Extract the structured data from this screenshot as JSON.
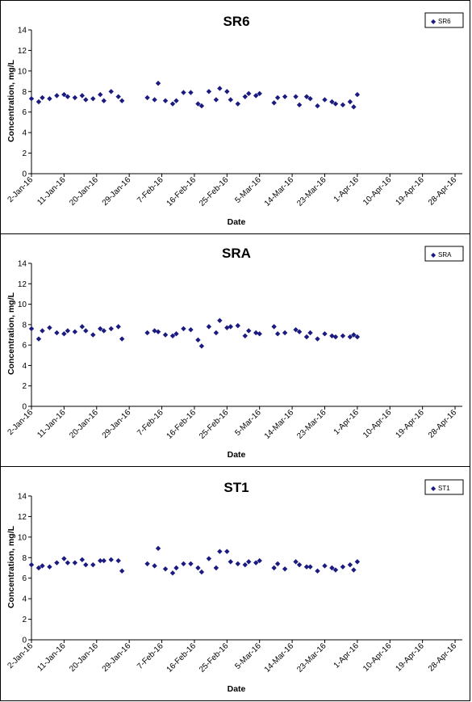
{
  "chart_data": [
    {
      "type": "scatter",
      "title": "SR6",
      "xlabel": "Date",
      "ylabel": "Concentration, mg/L",
      "ylim": [
        0,
        14
      ],
      "yticks": [
        "0",
        "2",
        "4",
        "6",
        "8",
        "10",
        "12",
        "14"
      ],
      "xlim": [
        "2016-01-02",
        "2016-04-30"
      ],
      "xticks": [
        "2-Jan-16",
        "11-Jan-16",
        "20-Jan-16",
        "29-Jan-16",
        "7-Feb-16",
        "16-Feb-16",
        "25-Feb-16",
        "5-Mar-16",
        "14-Mar-16",
        "23-Mar-16",
        "1-Apr-16",
        "10-Apr-16",
        "19-Apr-16",
        "28-Apr-16"
      ],
      "legend_position": "top-right",
      "grid": false,
      "marker_color": "#1a1a80",
      "series": [
        {
          "name": "SR6",
          "points": [
            [
              "2016-01-02",
              7.3
            ],
            [
              "2016-01-04",
              7.0
            ],
            [
              "2016-01-05",
              7.4
            ],
            [
              "2016-01-07",
              7.3
            ],
            [
              "2016-01-09",
              7.6
            ],
            [
              "2016-01-11",
              7.7
            ],
            [
              "2016-01-12",
              7.5
            ],
            [
              "2016-01-14",
              7.4
            ],
            [
              "2016-01-16",
              7.6
            ],
            [
              "2016-01-17",
              7.2
            ],
            [
              "2016-01-19",
              7.3
            ],
            [
              "2016-01-21",
              7.7
            ],
            [
              "2016-01-22",
              7.1
            ],
            [
              "2016-01-24",
              8.0
            ],
            [
              "2016-01-26",
              7.5
            ],
            [
              "2016-01-27",
              7.1
            ],
            [
              "2016-02-03",
              7.4
            ],
            [
              "2016-02-05",
              7.2
            ],
            [
              "2016-02-06",
              8.8
            ],
            [
              "2016-02-08",
              7.1
            ],
            [
              "2016-02-10",
              6.8
            ],
            [
              "2016-02-11",
              7.1
            ],
            [
              "2016-02-13",
              7.9
            ],
            [
              "2016-02-15",
              7.9
            ],
            [
              "2016-02-17",
              6.8
            ],
            [
              "2016-02-18",
              6.6
            ],
            [
              "2016-02-20",
              8.0
            ],
            [
              "2016-02-22",
              7.2
            ],
            [
              "2016-02-23",
              8.3
            ],
            [
              "2016-02-25",
              8.0
            ],
            [
              "2016-02-26",
              7.2
            ],
            [
              "2016-02-28",
              6.8
            ],
            [
              "2016-03-01",
              7.5
            ],
            [
              "2016-03-02",
              7.8
            ],
            [
              "2016-03-04",
              7.6
            ],
            [
              "2016-03-05",
              7.8
            ],
            [
              "2016-03-09",
              6.9
            ],
            [
              "2016-03-10",
              7.4
            ],
            [
              "2016-03-12",
              7.5
            ],
            [
              "2016-03-15",
              7.5
            ],
            [
              "2016-03-16",
              6.7
            ],
            [
              "2016-03-18",
              7.5
            ],
            [
              "2016-03-19",
              7.3
            ],
            [
              "2016-03-21",
              6.6
            ],
            [
              "2016-03-23",
              7.2
            ],
            [
              "2016-03-25",
              7.0
            ],
            [
              "2016-03-26",
              6.8
            ],
            [
              "2016-03-28",
              6.7
            ],
            [
              "2016-03-30",
              7.0
            ],
            [
              "2016-03-31",
              6.5
            ],
            [
              "2016-04-01",
              7.7
            ]
          ]
        }
      ]
    },
    {
      "type": "scatter",
      "title": "SRA",
      "xlabel": "Date",
      "ylabel": "Concentration, mg/L",
      "ylim": [
        0,
        14
      ],
      "yticks": [
        "0",
        "2",
        "4",
        "6",
        "8",
        "10",
        "12",
        "14"
      ],
      "xlim": [
        "2016-01-02",
        "2016-04-30"
      ],
      "xticks": [
        "2-Jan-16",
        "11-Jan-16",
        "20-Jan-16",
        "29-Jan-16",
        "7-Feb-16",
        "16-Feb-16",
        "25-Feb-16",
        "5-Mar-16",
        "14-Mar-16",
        "23-Mar-16",
        "1-Apr-16",
        "10-Apr-16",
        "19-Apr-16",
        "28-Apr-16"
      ],
      "legend_position": "top-right",
      "grid": false,
      "marker_color": "#1a1a80",
      "series": [
        {
          "name": "SRA",
          "points": [
            [
              "2016-01-02",
              7.6
            ],
            [
              "2016-01-04",
              6.6
            ],
            [
              "2016-01-05",
              7.4
            ],
            [
              "2016-01-07",
              7.7
            ],
            [
              "2016-01-09",
              7.2
            ],
            [
              "2016-01-11",
              7.1
            ],
            [
              "2016-01-12",
              7.4
            ],
            [
              "2016-01-14",
              7.3
            ],
            [
              "2016-01-16",
              7.8
            ],
            [
              "2016-01-17",
              7.4
            ],
            [
              "2016-01-19",
              7.0
            ],
            [
              "2016-01-21",
              7.6
            ],
            [
              "2016-01-22",
              7.4
            ],
            [
              "2016-01-24",
              7.6
            ],
            [
              "2016-01-26",
              7.8
            ],
            [
              "2016-01-27",
              6.6
            ],
            [
              "2016-02-03",
              7.2
            ],
            [
              "2016-02-05",
              7.4
            ],
            [
              "2016-02-06",
              7.3
            ],
            [
              "2016-02-08",
              7.0
            ],
            [
              "2016-02-10",
              6.9
            ],
            [
              "2016-02-11",
              7.1
            ],
            [
              "2016-02-13",
              7.6
            ],
            [
              "2016-02-15",
              7.5
            ],
            [
              "2016-02-17",
              6.5
            ],
            [
              "2016-02-18",
              5.9
            ],
            [
              "2016-02-20",
              7.8
            ],
            [
              "2016-02-22",
              7.2
            ],
            [
              "2016-02-23",
              8.4
            ],
            [
              "2016-02-25",
              7.7
            ],
            [
              "2016-02-26",
              7.8
            ],
            [
              "2016-02-28",
              7.9
            ],
            [
              "2016-03-01",
              6.9
            ],
            [
              "2016-03-02",
              7.4
            ],
            [
              "2016-03-04",
              7.2
            ],
            [
              "2016-03-05",
              7.1
            ],
            [
              "2016-03-09",
              7.8
            ],
            [
              "2016-03-10",
              7.1
            ],
            [
              "2016-03-12",
              7.2
            ],
            [
              "2016-03-15",
              7.5
            ],
            [
              "2016-03-16",
              7.3
            ],
            [
              "2016-03-18",
              6.8
            ],
            [
              "2016-03-19",
              7.2
            ],
            [
              "2016-03-21",
              6.6
            ],
            [
              "2016-03-23",
              7.1
            ],
            [
              "2016-03-25",
              6.9
            ],
            [
              "2016-03-26",
              6.8
            ],
            [
              "2016-03-28",
              6.9
            ],
            [
              "2016-03-30",
              6.8
            ],
            [
              "2016-03-31",
              7.0
            ],
            [
              "2016-04-01",
              6.8
            ]
          ]
        }
      ]
    },
    {
      "type": "scatter",
      "title": "ST1",
      "xlabel": "Date",
      "ylabel": "Concentration, mg/L",
      "ylim": [
        0,
        14
      ],
      "yticks": [
        "0",
        "2",
        "4",
        "6",
        "8",
        "10",
        "12",
        "14"
      ],
      "xlim": [
        "2016-01-02",
        "2016-04-30"
      ],
      "xticks": [
        "2-Jan-16",
        "11-Jan-16",
        "20-Jan-16",
        "29-Jan-16",
        "7-Feb-16",
        "16-Feb-16",
        "25-Feb-16",
        "5-Mar-16",
        "14-Mar-16",
        "23-Mar-16",
        "1-Apr-16",
        "10-Apr-16",
        "19-Apr-16",
        "28-Apr-16"
      ],
      "legend_position": "top-right",
      "grid": false,
      "marker_color": "#1a1a80",
      "series": [
        {
          "name": "ST1",
          "points": [
            [
              "2016-01-02",
              7.3
            ],
            [
              "2016-01-04",
              7.0
            ],
            [
              "2016-01-05",
              7.2
            ],
            [
              "2016-01-07",
              7.1
            ],
            [
              "2016-01-09",
              7.5
            ],
            [
              "2016-01-11",
              7.9
            ],
            [
              "2016-01-12",
              7.5
            ],
            [
              "2016-01-14",
              7.5
            ],
            [
              "2016-01-16",
              7.8
            ],
            [
              "2016-01-17",
              7.3
            ],
            [
              "2016-01-19",
              7.3
            ],
            [
              "2016-01-21",
              7.7
            ],
            [
              "2016-01-22",
              7.7
            ],
            [
              "2016-01-24",
              7.8
            ],
            [
              "2016-01-26",
              7.7
            ],
            [
              "2016-01-27",
              6.7
            ],
            [
              "2016-02-03",
              7.4
            ],
            [
              "2016-02-05",
              7.2
            ],
            [
              "2016-02-06",
              8.9
            ],
            [
              "2016-02-08",
              6.9
            ],
            [
              "2016-02-10",
              6.5
            ],
            [
              "2016-02-11",
              7.0
            ],
            [
              "2016-02-13",
              7.4
            ],
            [
              "2016-02-15",
              7.4
            ],
            [
              "2016-02-17",
              7.0
            ],
            [
              "2016-02-18",
              6.6
            ],
            [
              "2016-02-20",
              7.9
            ],
            [
              "2016-02-22",
              7.0
            ],
            [
              "2016-02-23",
              8.6
            ],
            [
              "2016-02-25",
              8.6
            ],
            [
              "2016-02-26",
              7.6
            ],
            [
              "2016-02-28",
              7.4
            ],
            [
              "2016-03-01",
              7.3
            ],
            [
              "2016-03-02",
              7.6
            ],
            [
              "2016-03-04",
              7.5
            ],
            [
              "2016-03-05",
              7.7
            ],
            [
              "2016-03-09",
              7.0
            ],
            [
              "2016-03-10",
              7.4
            ],
            [
              "2016-03-12",
              6.9
            ],
            [
              "2016-03-15",
              7.6
            ],
            [
              "2016-03-16",
              7.3
            ],
            [
              "2016-03-18",
              7.1
            ],
            [
              "2016-03-19",
              7.1
            ],
            [
              "2016-03-21",
              6.7
            ],
            [
              "2016-03-23",
              7.2
            ],
            [
              "2016-03-25",
              7.0
            ],
            [
              "2016-03-26",
              6.8
            ],
            [
              "2016-03-28",
              7.1
            ],
            [
              "2016-03-30",
              7.3
            ],
            [
              "2016-03-31",
              6.8
            ],
            [
              "2016-04-01",
              7.6
            ]
          ]
        }
      ]
    }
  ]
}
